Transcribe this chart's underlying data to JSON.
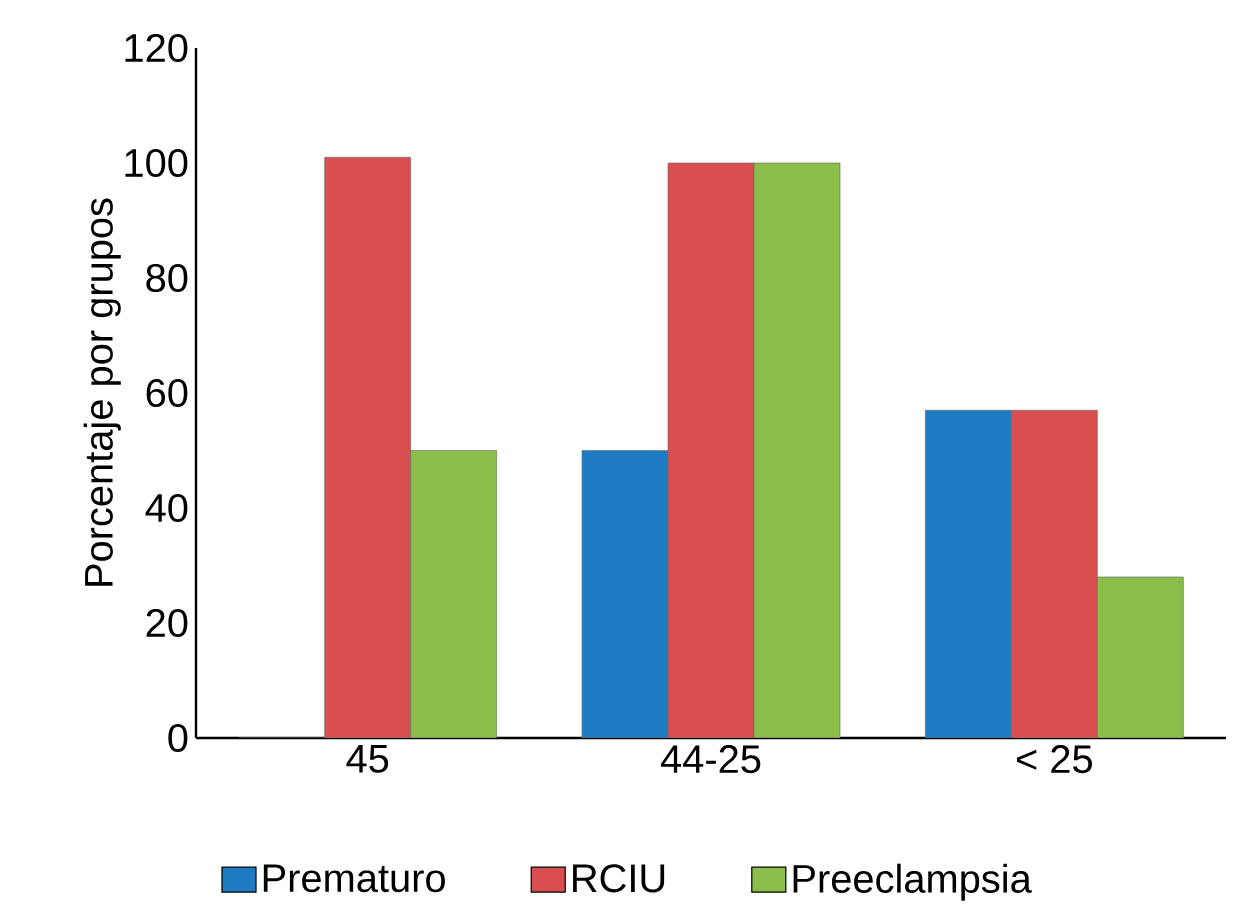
{
  "chart_data": {
    "type": "bar",
    "ylabel": "Porcentaje por grupos",
    "categories": [
      "45",
      "44-25",
      "< 25"
    ],
    "series": [
      {
        "name": "Prematuro",
        "color": "#1f7bc1",
        "values": [
          0,
          50,
          57
        ]
      },
      {
        "name": "RCIU",
        "color": "#d94f4f",
        "values": [
          101,
          100,
          57
        ]
      },
      {
        "name": "Preeclampsia",
        "color": "#8bbd4a",
        "values": [
          50,
          100,
          28
        ]
      }
    ],
    "ylim": [
      0,
      120
    ],
    "yticks": [
      0,
      20,
      40,
      60,
      80,
      100,
      120
    ],
    "legend": "bottom",
    "grid": false
  }
}
